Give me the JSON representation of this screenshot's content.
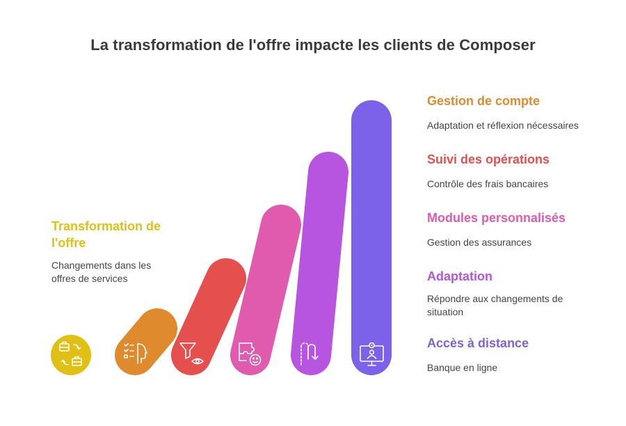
{
  "title": "La transformation de l'offre impacte les clients de Composer",
  "left": {
    "heading": "Transformation de l'offre",
    "description": "Changements dans les offres de services",
    "color": "#E0C014",
    "icon": "briefcase-exchange-icon"
  },
  "items": [
    {
      "heading": "Gestion de compte",
      "description": "Adaptation et réflexion nécessaires",
      "color": "#E08A2E",
      "icon": "checklist-head-icon"
    },
    {
      "heading": "Suivi des opérations",
      "description": "Contrôle des frais bancaires",
      "color": "#E5504E",
      "icon": "filter-eye-icon"
    },
    {
      "heading": "Modules personnalisés",
      "description": "Gestion des assurances",
      "color": "#E05AAE",
      "icon": "puzzle-face-icon"
    },
    {
      "heading": "Adaptation",
      "description": "Répondre aux changements de situation",
      "color": "#B855E0",
      "icon": "path-arrow-icon"
    },
    {
      "heading": "Accès à distance",
      "description": "Banque en ligne",
      "color": "#7C62E8",
      "icon": "remote-monitor-icon"
    }
  ]
}
